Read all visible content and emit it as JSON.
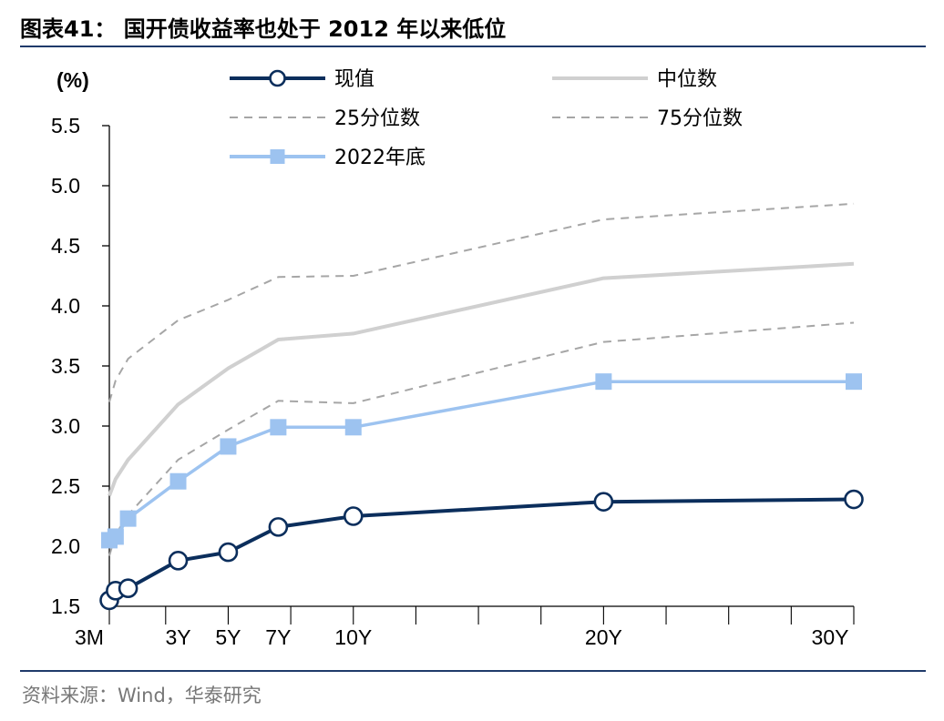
{
  "header": {
    "title": "图表41： 国开债收益率也处于 2012 年以来低位"
  },
  "footer": {
    "source": "资料来源：Wind，华泰研究"
  },
  "chart_data": {
    "type": "line",
    "title": "国开债收益率也处于 2012 年以来低位",
    "ylabel": "(%)",
    "xlabel": "",
    "ylim": [
      1.5,
      5.5
    ],
    "yticks": [
      1.5,
      2.0,
      2.5,
      3.0,
      3.5,
      4.0,
      4.5,
      5.0,
      5.5
    ],
    "ytick_labels": [
      "1.5",
      "2.0",
      "2.5",
      "3.0",
      "3.5",
      "4.0",
      "4.5",
      "5.0",
      "5.5"
    ],
    "xlim": [
      0.25,
      30
    ],
    "xticks": [
      0.25,
      2.5,
      5,
      7.5,
      10,
      12.5,
      15,
      17.5,
      20,
      22.5,
      25,
      27.5,
      30
    ],
    "xtick_labels": [
      {
        "x": 0.25,
        "text": "3M"
      },
      {
        "x": 3,
        "text": "3Y"
      },
      {
        "x": 5,
        "text": "5Y"
      },
      {
        "x": 7,
        "text": "7Y"
      },
      {
        "x": 10,
        "text": "10Y"
      },
      {
        "x": 20,
        "text": "20Y"
      },
      {
        "x": 30,
        "text": "30Y"
      }
    ],
    "series": [
      {
        "name": "75分位数",
        "style": "dashed",
        "color": "#a6a6a6",
        "marker": "none",
        "x": [
          0.25,
          0.5,
          1,
          3,
          5,
          7,
          10,
          20,
          30
        ],
        "values": [
          3.2,
          3.38,
          3.56,
          3.88,
          4.05,
          4.24,
          4.25,
          4.72,
          4.85
        ]
      },
      {
        "name": "中位数",
        "style": "solid",
        "color": "#d0d0d0",
        "marker": "none",
        "x": [
          0.25,
          0.5,
          1,
          3,
          5,
          7,
          10,
          20,
          30
        ],
        "values": [
          2.42,
          2.56,
          2.72,
          3.18,
          3.48,
          3.72,
          3.77,
          4.23,
          4.35
        ]
      },
      {
        "name": "25分位数",
        "style": "dashed",
        "color": "#a6a6a6",
        "marker": "none",
        "x": [
          0.25,
          0.5,
          1,
          3,
          5,
          7,
          10,
          20,
          30
        ],
        "values": [
          1.92,
          2.1,
          2.26,
          2.72,
          2.97,
          3.21,
          3.19,
          3.7,
          3.86
        ]
      },
      {
        "name": "2022年底",
        "style": "solid",
        "color": "#9dc3f0",
        "marker": "square",
        "x": [
          0.25,
          0.5,
          1,
          3,
          5,
          7,
          10,
          20,
          30
        ],
        "values": [
          2.05,
          2.08,
          2.23,
          2.54,
          2.83,
          2.99,
          2.99,
          3.37,
          3.37
        ]
      },
      {
        "name": "现值",
        "style": "solid",
        "color": "#0b2e5c",
        "marker": "circle",
        "x": [
          0.25,
          0.5,
          1,
          3,
          5,
          7,
          10,
          20,
          30
        ],
        "values": [
          1.55,
          1.63,
          1.65,
          1.88,
          1.95,
          2.16,
          2.25,
          2.37,
          2.39
        ]
      }
    ],
    "legend": {
      "placement": "top",
      "entries": [
        "现值",
        "中位数",
        "25分位数",
        "75分位数",
        "2022年底"
      ]
    }
  }
}
